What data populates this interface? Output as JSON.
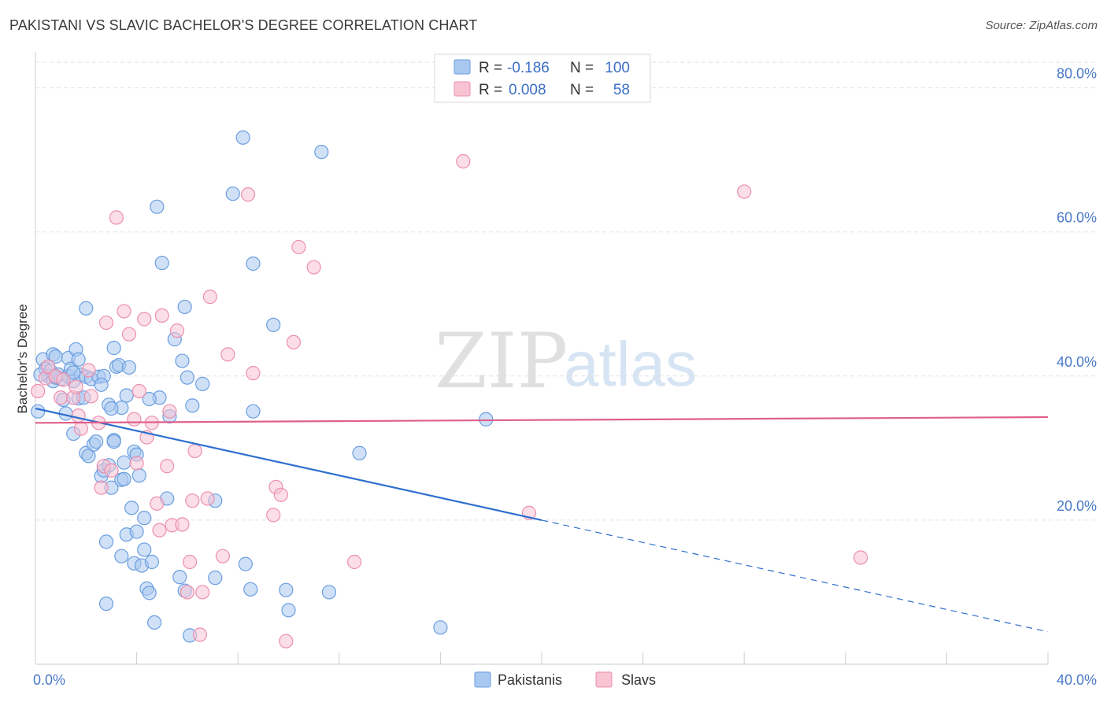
{
  "title": "PAKISTANI VS SLAVIC BACHELOR'S DEGREE CORRELATION CHART",
  "source": "Source: ZipAtlas.com",
  "watermark": {
    "zip": "ZIP",
    "atlas": "atlas"
  },
  "legend": {
    "rows": [
      {
        "r_label": "R =",
        "r_value": "-0.186",
        "n_label": "N =",
        "n_value": "100",
        "color": "#a9c8f0",
        "stroke": "#6a9ee0"
      },
      {
        "r_label": "R =",
        "r_value": "0.008",
        "n_label": "N =",
        "n_value": "58",
        "color": "#f8c3d3",
        "stroke": "#ec8fae"
      }
    ]
  },
  "bottom_legend": [
    {
      "label": "Pakistanis",
      "color": "#a9c8f0",
      "stroke": "#6a9ee0"
    },
    {
      "label": "Slavs",
      "color": "#f8c3d3",
      "stroke": "#ec8fae"
    }
  ],
  "chart_data": {
    "type": "scatter",
    "ylabel": "Bachelor's Degree",
    "xlim": [
      0,
      40
    ],
    "ylim": [
      0,
      84
    ],
    "x_tick_labels": [
      "0.0%",
      "40.0%"
    ],
    "y_ticks": [
      20,
      40,
      60,
      80
    ],
    "y_tick_labels": [
      "20.0%",
      "40.0%",
      "60.0%",
      "80.0%"
    ],
    "grid": "horizontal dashed",
    "legend_position": "top-center",
    "series": [
      {
        "name": "Pakistanis",
        "color": "#6a9ee0",
        "fill": "#a9c8f0",
        "trend": {
          "x0": 0,
          "y0": 35.5,
          "x1": 20,
          "y1": 20.0,
          "dashed_to_x": 40,
          "dashed_to_y": 4.5,
          "color": "#2f6fd0"
        },
        "points": [
          [
            0.1,
            35.1
          ],
          [
            0.3,
            42.3
          ],
          [
            0.4,
            41.0
          ],
          [
            0.5,
            40.0
          ],
          [
            0.6,
            40.7
          ],
          [
            0.7,
            43.0
          ],
          [
            0.7,
            39.3
          ],
          [
            0.8,
            42.7
          ],
          [
            0.9,
            40.2
          ],
          [
            1.0,
            39.6
          ],
          [
            1.1,
            36.7
          ],
          [
            1.2,
            34.8
          ],
          [
            1.3,
            40.0
          ],
          [
            1.3,
            42.5
          ],
          [
            1.4,
            41.0
          ],
          [
            1.5,
            32.0
          ],
          [
            1.5,
            39.3
          ],
          [
            1.6,
            43.7
          ],
          [
            1.7,
            36.9
          ],
          [
            1.7,
            42.3
          ],
          [
            1.8,
            40.2
          ],
          [
            1.9,
            37.0
          ],
          [
            2.0,
            39.9
          ],
          [
            2.0,
            29.3
          ],
          [
            2.0,
            49.4
          ],
          [
            2.1,
            28.9
          ],
          [
            2.2,
            39.6
          ],
          [
            2.3,
            30.5
          ],
          [
            2.4,
            30.9
          ],
          [
            2.5,
            39.9
          ],
          [
            2.6,
            26.1
          ],
          [
            2.7,
            40.0
          ],
          [
            2.7,
            26.9
          ],
          [
            2.8,
            8.4
          ],
          [
            2.8,
            17.0
          ],
          [
            2.9,
            36.0
          ],
          [
            2.9,
            27.6
          ],
          [
            3.0,
            24.5
          ],
          [
            3.1,
            31.1
          ],
          [
            3.1,
            30.9
          ],
          [
            3.1,
            43.9
          ],
          [
            3.2,
            41.3
          ],
          [
            3.3,
            41.5
          ],
          [
            3.4,
            35.6
          ],
          [
            3.4,
            25.6
          ],
          [
            3.4,
            15.0
          ],
          [
            3.5,
            28.0
          ],
          [
            3.5,
            25.7
          ],
          [
            3.6,
            37.3
          ],
          [
            3.6,
            18.0
          ],
          [
            3.7,
            41.2
          ],
          [
            3.8,
            21.7
          ],
          [
            3.9,
            29.5
          ],
          [
            3.9,
            14.0
          ],
          [
            4.0,
            29.1
          ],
          [
            4.0,
            18.4
          ],
          [
            4.1,
            26.2
          ],
          [
            4.2,
            13.7
          ],
          [
            4.3,
            20.3
          ],
          [
            4.3,
            15.9
          ],
          [
            4.4,
            10.5
          ],
          [
            4.5,
            9.9
          ],
          [
            4.6,
            14.2
          ],
          [
            4.7,
            5.8
          ],
          [
            4.8,
            63.5
          ],
          [
            4.9,
            37.0
          ],
          [
            5.2,
            23.0
          ],
          [
            5.0,
            55.7
          ],
          [
            5.3,
            34.4
          ],
          [
            5.5,
            45.1
          ],
          [
            5.7,
            12.1
          ],
          [
            5.8,
            42.1
          ],
          [
            5.9,
            49.6
          ],
          [
            5.9,
            10.2
          ],
          [
            6.0,
            39.8
          ],
          [
            6.1,
            4.0
          ],
          [
            6.2,
            35.9
          ],
          [
            6.6,
            38.9
          ],
          [
            7.1,
            22.7
          ],
          [
            7.1,
            12.0
          ],
          [
            7.8,
            65.3
          ],
          [
            8.2,
            73.1
          ],
          [
            8.3,
            13.9
          ],
          [
            8.5,
            10.4
          ],
          [
            8.6,
            55.6
          ],
          [
            8.6,
            35.1
          ],
          [
            9.4,
            47.1
          ],
          [
            9.9,
            10.3
          ],
          [
            10.0,
            7.5
          ],
          [
            11.3,
            71.1
          ],
          [
            11.6,
            10.0
          ],
          [
            12.8,
            29.3
          ],
          [
            16.0,
            5.1
          ],
          [
            17.8,
            34.0
          ],
          [
            0.2,
            40.2
          ],
          [
            0.8,
            39.8
          ],
          [
            1.5,
            40.5
          ],
          [
            2.6,
            38.8
          ],
          [
            4.5,
            36.8
          ],
          [
            3.0,
            35.5
          ]
        ]
      },
      {
        "name": "Slavs",
        "color": "#ec8fae",
        "fill": "#f8c3d3",
        "trend": {
          "x0": 0,
          "y0": 33.5,
          "x1": 40,
          "y1": 34.3,
          "color": "#e0608a"
        },
        "points": [
          [
            0.1,
            37.9
          ],
          [
            0.4,
            39.7
          ],
          [
            0.5,
            41.3
          ],
          [
            0.8,
            40.0
          ],
          [
            1.0,
            37.0
          ],
          [
            1.1,
            39.5
          ],
          [
            1.5,
            37.0
          ],
          [
            1.6,
            38.5
          ],
          [
            1.7,
            34.5
          ],
          [
            1.8,
            32.7
          ],
          [
            2.1,
            40.8
          ],
          [
            2.2,
            37.2
          ],
          [
            2.5,
            33.5
          ],
          [
            2.6,
            24.5
          ],
          [
            2.7,
            27.5
          ],
          [
            2.8,
            47.4
          ],
          [
            3.0,
            26.9
          ],
          [
            3.2,
            62.0
          ],
          [
            3.5,
            49.0
          ],
          [
            3.7,
            45.8
          ],
          [
            3.9,
            34.0
          ],
          [
            4.0,
            27.9
          ],
          [
            4.1,
            37.9
          ],
          [
            4.3,
            47.9
          ],
          [
            4.4,
            31.5
          ],
          [
            4.6,
            33.5
          ],
          [
            4.8,
            22.3
          ],
          [
            4.9,
            18.6
          ],
          [
            5.0,
            48.4
          ],
          [
            5.2,
            27.5
          ],
          [
            5.3,
            35.1
          ],
          [
            5.4,
            19.3
          ],
          [
            5.6,
            46.3
          ],
          [
            5.8,
            19.4
          ],
          [
            6.0,
            10.0
          ],
          [
            6.1,
            14.2
          ],
          [
            6.2,
            22.7
          ],
          [
            6.3,
            29.6
          ],
          [
            6.5,
            4.1
          ],
          [
            6.6,
            10.0
          ],
          [
            6.8,
            23.0
          ],
          [
            6.9,
            51.0
          ],
          [
            7.4,
            15.0
          ],
          [
            7.6,
            43.0
          ],
          [
            8.4,
            65.2
          ],
          [
            8.6,
            40.4
          ],
          [
            9.4,
            20.7
          ],
          [
            9.5,
            24.6
          ],
          [
            9.7,
            23.5
          ],
          [
            9.9,
            3.2
          ],
          [
            10.2,
            44.7
          ],
          [
            10.4,
            57.9
          ],
          [
            11.0,
            55.1
          ],
          [
            12.6,
            14.2
          ],
          [
            16.9,
            69.8
          ],
          [
            19.5,
            21.0
          ],
          [
            28.0,
            65.6
          ],
          [
            32.6,
            14.8
          ]
        ]
      }
    ]
  }
}
